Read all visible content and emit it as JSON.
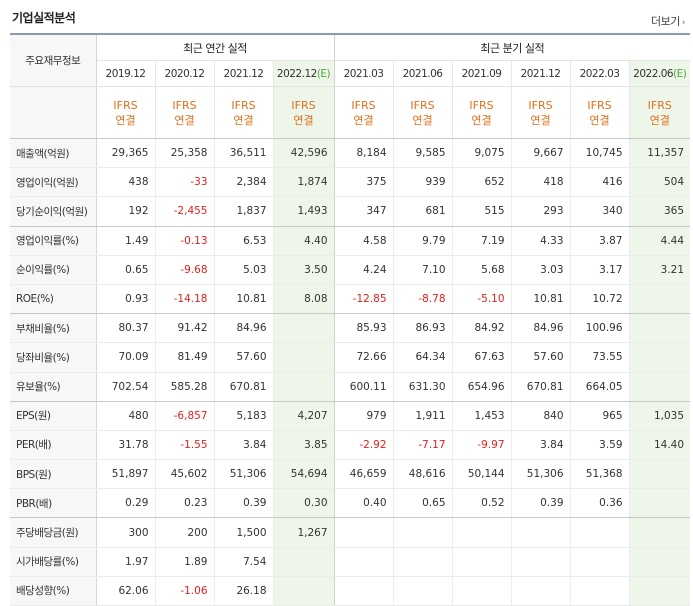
{
  "header": {
    "title": "기업실적분석",
    "more": "더보기"
  },
  "table": {
    "corner": "주요재무정보",
    "group_annual": "최근 연간 실적",
    "group_quarter": "최근 분기 실적",
    "periods": [
      {
        "label": "2019.12",
        "est": ""
      },
      {
        "label": "2020.12",
        "est": ""
      },
      {
        "label": "2021.12",
        "est": ""
      },
      {
        "label": "2022.12",
        "est": "(E)"
      },
      {
        "label": "2021.03",
        "est": ""
      },
      {
        "label": "2021.06",
        "est": ""
      },
      {
        "label": "2021.09",
        "est": ""
      },
      {
        "label": "2021.12",
        "est": ""
      },
      {
        "label": "2022.03",
        "est": ""
      },
      {
        "label": "2022.06",
        "est": "(E)"
      }
    ],
    "std_top": "IFRS",
    "std_bottom": "연결",
    "rows": [
      {
        "label": "매출액(억원)",
        "values": [
          "29,365",
          "25,358",
          "36,511",
          "42,596",
          "8,184",
          "9,585",
          "9,075",
          "9,667",
          "10,745",
          "11,357"
        ]
      },
      {
        "label": "영업이익(억원)",
        "values": [
          "438",
          "-33",
          "2,384",
          "1,874",
          "375",
          "939",
          "652",
          "418",
          "416",
          "504"
        ]
      },
      {
        "label": "당기순이익(억원)",
        "values": [
          "192",
          "-2,455",
          "1,837",
          "1,493",
          "347",
          "681",
          "515",
          "293",
          "340",
          "365"
        ]
      },
      {
        "label": "영업이익률(%)",
        "values": [
          "1.49",
          "-0.13",
          "6.53",
          "4.40",
          "4.58",
          "9.79",
          "7.19",
          "4.33",
          "3.87",
          "4.44"
        ]
      },
      {
        "label": "순이익률(%)",
        "values": [
          "0.65",
          "-9.68",
          "5.03",
          "3.50",
          "4.24",
          "7.10",
          "5.68",
          "3.03",
          "3.17",
          "3.21"
        ]
      },
      {
        "label": "ROE(%)",
        "values": [
          "0.93",
          "-14.18",
          "10.81",
          "8.08",
          "-12.85",
          "-8.78",
          "-5.10",
          "10.81",
          "10.72",
          ""
        ]
      },
      {
        "label": "부채비율(%)",
        "values": [
          "80.37",
          "91.42",
          "84.96",
          "",
          "85.93",
          "86.93",
          "84.92",
          "84.96",
          "100.96",
          ""
        ]
      },
      {
        "label": "당좌비율(%)",
        "values": [
          "70.09",
          "81.49",
          "57.60",
          "",
          "72.66",
          "64.34",
          "67.63",
          "57.60",
          "73.55",
          ""
        ]
      },
      {
        "label": "유보율(%)",
        "values": [
          "702.54",
          "585.28",
          "670.81",
          "",
          "600.11",
          "631.30",
          "654.96",
          "670.81",
          "664.05",
          ""
        ]
      },
      {
        "label": "EPS(원)",
        "values": [
          "480",
          "-6,857",
          "5,183",
          "4,207",
          "979",
          "1,911",
          "1,453",
          "840",
          "965",
          "1,035"
        ]
      },
      {
        "label": "PER(배)",
        "values": [
          "31.78",
          "-1.55",
          "3.84",
          "3.85",
          "-2.92",
          "-7.17",
          "-9.97",
          "3.84",
          "3.59",
          "14.40"
        ]
      },
      {
        "label": "BPS(원)",
        "values": [
          "51,897",
          "45,602",
          "51,306",
          "54,694",
          "46,659",
          "48,616",
          "50,144",
          "51,306",
          "51,368",
          ""
        ]
      },
      {
        "label": "PBR(배)",
        "values": [
          "0.29",
          "0.23",
          "0.39",
          "0.30",
          "0.40",
          "0.65",
          "0.52",
          "0.39",
          "0.36",
          ""
        ]
      },
      {
        "label": "주당배당금(원)",
        "values": [
          "300",
          "200",
          "1,500",
          "1,267",
          "",
          "",
          "",
          "",
          "",
          ""
        ]
      },
      {
        "label": "시가배당률(%)",
        "values": [
          "1.97",
          "1.89",
          "7.54",
          "",
          "",
          "",
          "",
          "",
          "",
          ""
        ]
      },
      {
        "label": "배당성향(%)",
        "values": [
          "62.06",
          "-1.06",
          "26.18",
          "",
          "",
          "",
          "",
          "",
          "",
          ""
        ]
      }
    ],
    "group_end_rows": [
      2,
      5,
      8,
      12
    ]
  }
}
